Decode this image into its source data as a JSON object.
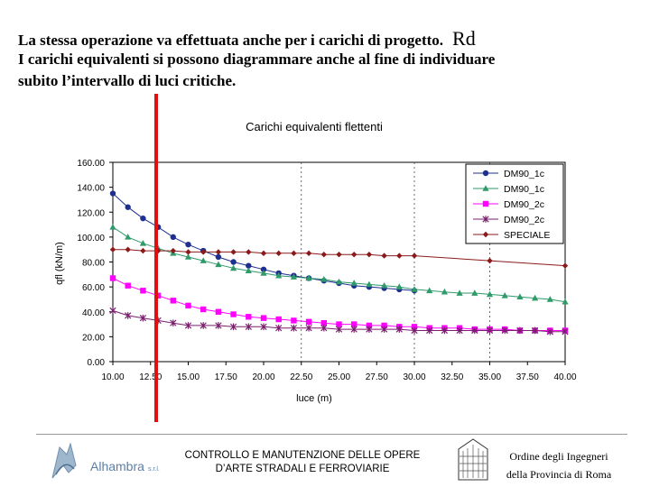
{
  "slide": {
    "line1": "La stessa operazione va effettuata anche per i carichi di progetto.",
    "line1_suffix": "Rd",
    "line2": "I carichi equivalenti  si possono diagrammare anche al fine di individuare",
    "line3": "subito l’intervallo di luci critiche."
  },
  "highlight": {
    "color": "#e01010",
    "x_value": 12.8
  },
  "chart_data": {
    "type": "line",
    "title": "Carichi equivalenti flettenti",
    "xlabel": "luce (m)",
    "ylabel": "qfl (kN/m)",
    "xlim": [
      10,
      40
    ],
    "ylim": [
      0,
      160
    ],
    "x_ticks": [
      "10.00",
      "12.50",
      "15.00",
      "17.50",
      "20.00",
      "22.50",
      "25.00",
      "27.50",
      "30.00",
      "32.50",
      "35.00",
      "37.50",
      "40.00"
    ],
    "y_ticks": [
      "0.00",
      "20.00",
      "40.00",
      "60.00",
      "80.00",
      "100.00",
      "120.00",
      "140.00",
      "160.00"
    ],
    "dashed_x": [
      22.5,
      30,
      35
    ],
    "legend_position": "top-right",
    "series": [
      {
        "name": "DM90_1c",
        "color": "#1f2f8f",
        "marker": "circle",
        "x": [
          10,
          11,
          12,
          13,
          14,
          15,
          16,
          17,
          18,
          19,
          20,
          21,
          22,
          23,
          24,
          25,
          26,
          27,
          28,
          29,
          30
        ],
        "y": [
          135,
          124,
          115,
          108,
          100,
          94,
          89,
          84,
          80,
          77,
          74,
          71,
          69,
          67,
          65,
          63,
          61,
          60,
          59,
          58,
          57
        ]
      },
      {
        "name": "DM90_1c",
        "color": "#2f9a6a",
        "marker": "triangle",
        "x": [
          10,
          11,
          12,
          13,
          14,
          15,
          16,
          17,
          18,
          19,
          20,
          21,
          22,
          23,
          24,
          25,
          26,
          27,
          28,
          29,
          30,
          31,
          32,
          33,
          34,
          35,
          36,
          37,
          38,
          39,
          40
        ],
        "y": [
          108,
          100,
          95,
          91,
          87,
          84,
          81,
          78,
          75,
          73,
          71,
          69,
          68,
          67,
          66,
          64,
          63,
          62,
          61,
          60,
          58,
          57,
          56,
          55,
          55,
          54,
          53,
          52,
          51,
          50,
          48
        ]
      },
      {
        "name": "DM90_2c",
        "color": "#ff00ff",
        "marker": "square",
        "x": [
          10,
          11,
          12,
          13,
          14,
          15,
          16,
          17,
          18,
          19,
          20,
          21,
          22,
          23,
          24,
          25,
          26,
          27,
          28,
          29,
          30,
          31,
          32,
          33,
          34,
          35,
          36,
          37,
          38,
          39,
          40
        ],
        "y": [
          67,
          61,
          57,
          53,
          49,
          45,
          42,
          40,
          38,
          36,
          35,
          34,
          33,
          32,
          31,
          30,
          30,
          29,
          29,
          28,
          28,
          27,
          27,
          27,
          26,
          26,
          26,
          25,
          25,
          25,
          25
        ]
      },
      {
        "name": "DM90_2c",
        "color": "#7a1f6e",
        "marker": "star",
        "x": [
          10,
          11,
          12,
          13,
          14,
          15,
          16,
          17,
          18,
          19,
          20,
          21,
          22,
          23,
          24,
          25,
          26,
          27,
          28,
          29,
          30,
          31,
          32,
          33,
          34,
          35,
          36,
          37,
          38,
          39,
          40
        ],
        "y": [
          41,
          37,
          35,
          33,
          31,
          29,
          29,
          29,
          28,
          28,
          28,
          27,
          27,
          27,
          27,
          26,
          26,
          26,
          26,
          26,
          25,
          25,
          25,
          25,
          25,
          25,
          25,
          25,
          25,
          24,
          24
        ]
      },
      {
        "name": "SPECIALE",
        "color": "#8b1a1a",
        "marker": "diamond",
        "x": [
          10,
          11,
          12,
          13,
          14,
          15,
          16,
          17,
          18,
          19,
          20,
          21,
          22,
          23,
          24,
          25,
          26,
          27,
          28,
          29,
          30,
          35,
          40
        ],
        "y": [
          90,
          90,
          89,
          89,
          89,
          88,
          88,
          88,
          88,
          88,
          87,
          87,
          87,
          87,
          86,
          86,
          86,
          86,
          85,
          85,
          85,
          81,
          77
        ]
      }
    ]
  },
  "footer": {
    "logo_text": "Alhambra",
    "logo_suffix": "s.r.l.",
    "center_line1": "CONTROLLO E MANUTENZIONE DELLE OPERE",
    "center_line2": "D’ARTE STRADALI E FERROVIARIE",
    "right_line1": "Ordine degli Ingegneri",
    "right_line2": "della Provincia di Roma"
  }
}
